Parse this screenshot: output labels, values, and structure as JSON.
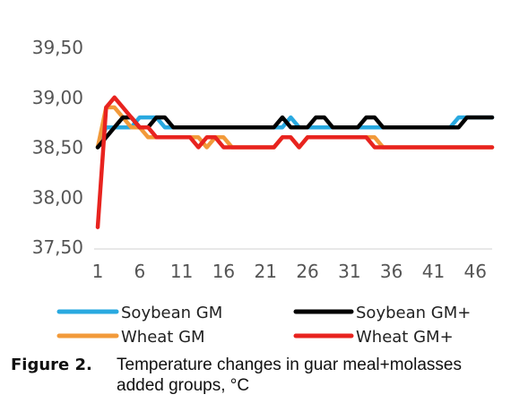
{
  "chart_data": {
    "type": "line",
    "y_ticks": [
      "39,50",
      "39,00",
      "38,50",
      "38,00",
      "37,50"
    ],
    "x_ticks": [
      "1",
      "6",
      "11",
      "16",
      "21",
      "26",
      "31",
      "36",
      "41",
      "46"
    ],
    "ylim": [
      37.5,
      39.5
    ],
    "xlim": [
      1,
      48
    ],
    "grid": false,
    "legend_position": "bottom",
    "x": [
      1,
      2,
      3,
      4,
      5,
      6,
      7,
      8,
      9,
      10,
      11,
      12,
      13,
      14,
      15,
      16,
      17,
      18,
      19,
      20,
      21,
      22,
      23,
      24,
      25,
      26,
      27,
      28,
      29,
      30,
      31,
      32,
      33,
      34,
      35,
      36,
      37,
      38,
      39,
      40,
      41,
      42,
      43,
      44,
      45,
      46,
      47,
      48
    ],
    "series": [
      {
        "name": "Soybean GM",
        "color": "#29a9e0",
        "values": [
          38.5,
          38.7,
          38.7,
          38.7,
          38.7,
          38.8,
          38.8,
          38.8,
          38.7,
          38.7,
          38.7,
          38.7,
          38.7,
          38.7,
          38.7,
          38.7,
          38.7,
          38.7,
          38.7,
          38.7,
          38.7,
          38.7,
          38.7,
          38.8,
          38.7,
          38.7,
          38.7,
          38.7,
          38.7,
          38.7,
          38.7,
          38.7,
          38.7,
          38.7,
          38.7,
          38.7,
          38.7,
          38.7,
          38.7,
          38.7,
          38.7,
          38.7,
          38.7,
          38.8,
          38.8,
          38.8,
          38.8,
          38.8
        ]
      },
      {
        "name": "Soybean GM+",
        "color": "#000000",
        "values": [
          38.5,
          38.6,
          38.7,
          38.8,
          38.8,
          38.7,
          38.7,
          38.8,
          38.8,
          38.7,
          38.7,
          38.7,
          38.7,
          38.7,
          38.7,
          38.7,
          38.7,
          38.7,
          38.7,
          38.7,
          38.7,
          38.7,
          38.8,
          38.7,
          38.7,
          38.7,
          38.8,
          38.8,
          38.7,
          38.7,
          38.7,
          38.7,
          38.8,
          38.8,
          38.7,
          38.7,
          38.7,
          38.7,
          38.7,
          38.7,
          38.7,
          38.7,
          38.7,
          38.7,
          38.8,
          38.8,
          38.8,
          38.8
        ]
      },
      {
        "name": "Wheat GM",
        "color": "#f29a3a",
        "values": [
          38.5,
          38.9,
          38.9,
          38.8,
          38.7,
          38.7,
          38.6,
          38.6,
          38.6,
          38.6,
          38.6,
          38.6,
          38.6,
          38.5,
          38.6,
          38.6,
          38.5,
          38.5,
          38.5,
          38.5,
          38.5,
          38.5,
          38.6,
          38.6,
          38.5,
          38.6,
          38.6,
          38.6,
          38.6,
          38.6,
          38.6,
          38.6,
          38.6,
          38.6,
          38.5,
          38.5,
          38.5,
          38.5,
          38.5,
          38.5,
          38.5,
          38.5,
          38.5,
          38.5,
          38.5,
          38.5,
          38.5,
          38.5
        ]
      },
      {
        "name": "Wheat GM+",
        "color": "#e8231f",
        "values": [
          37.7,
          38.9,
          39.0,
          38.9,
          38.8,
          38.7,
          38.7,
          38.6,
          38.6,
          38.6,
          38.6,
          38.6,
          38.5,
          38.6,
          38.6,
          38.5,
          38.5,
          38.5,
          38.5,
          38.5,
          38.5,
          38.5,
          38.6,
          38.6,
          38.5,
          38.6,
          38.6,
          38.6,
          38.6,
          38.6,
          38.6,
          38.6,
          38.6,
          38.5,
          38.5,
          38.5,
          38.5,
          38.5,
          38.5,
          38.5,
          38.5,
          38.5,
          38.5,
          38.5,
          38.5,
          38.5,
          38.5,
          38.5
        ]
      }
    ]
  },
  "caption": {
    "label": "Figure 2.",
    "text": "Temperature changes in guar meal+molasses added groups, °C"
  }
}
